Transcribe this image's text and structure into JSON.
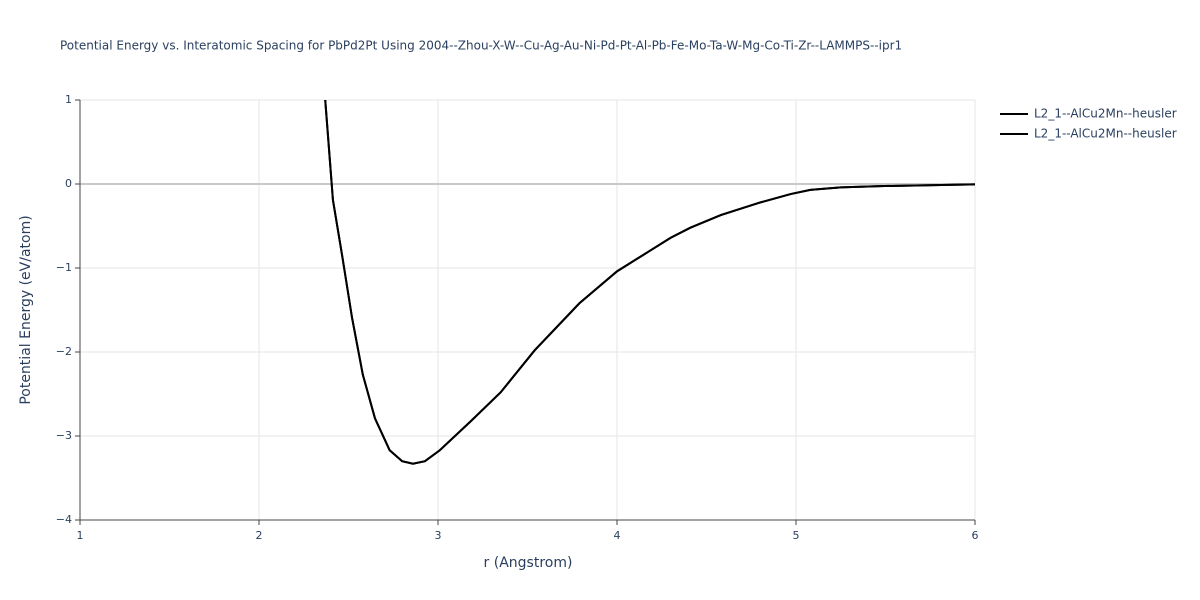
{
  "chart_data": {
    "type": "line",
    "title": "Potential Energy vs. Interatomic Spacing for PbPd2Pt Using 2004--Zhou-X-W--Cu-Ag-Au-Ni-Pd-Pt-Al-Pb-Fe-Mo-Ta-W-Mg-Co-Ti-Zr--LAMMPS--ipr1",
    "xlabel": "r (Angstrom)",
    "ylabel": "Potential Energy (eV/atom)",
    "xlim": [
      1,
      6
    ],
    "ylim": [
      -4,
      1
    ],
    "xticks": [
      1,
      2,
      3,
      4,
      5,
      6
    ],
    "yticks": [
      {
        "value": -4,
        "label": "−4"
      },
      {
        "value": -3,
        "label": "−3"
      },
      {
        "value": -2,
        "label": "−2"
      },
      {
        "value": -1,
        "label": "−1"
      },
      0,
      1
    ],
    "grid": true,
    "legend": "right",
    "x": [
      2.37,
      2.413,
      2.464,
      2.52,
      2.58,
      2.648,
      2.73,
      2.8,
      2.86,
      2.927,
      3.01,
      3.18,
      3.35,
      3.54,
      3.79,
      4.0,
      4.18,
      4.3,
      4.41,
      4.58,
      4.8,
      4.97,
      5.08,
      5.25,
      5.47,
      6.0
    ],
    "series": [
      {
        "name": "L2_1--AlCu2Mn--heusler",
        "color": "#000000",
        "values": [
          1,
          -0.19,
          -0.845,
          -1.595,
          -2.27,
          -2.79,
          -3.17,
          -3.3,
          -3.33,
          -3.3,
          -3.17,
          -2.83,
          -2.48,
          -1.98,
          -1.42,
          -1.04,
          -0.8,
          -0.64,
          -0.52,
          -0.37,
          -0.22,
          -0.12,
          -0.07,
          -0.04,
          -0.025,
          -0.005
        ]
      },
      {
        "name": "L2_1--AlCu2Mn--heusler",
        "color": "#000000",
        "values": [
          1,
          -0.19,
          -0.845,
          -1.595,
          -2.27,
          -2.79,
          -3.17,
          -3.3,
          -3.33,
          -3.3,
          -3.17,
          -2.83,
          -2.48,
          -1.98,
          -1.42,
          -1.04,
          -0.8,
          -0.64,
          -0.52,
          -0.37,
          -0.22,
          -0.12,
          -0.07,
          -0.04,
          -0.025,
          -0.005
        ]
      }
    ]
  }
}
